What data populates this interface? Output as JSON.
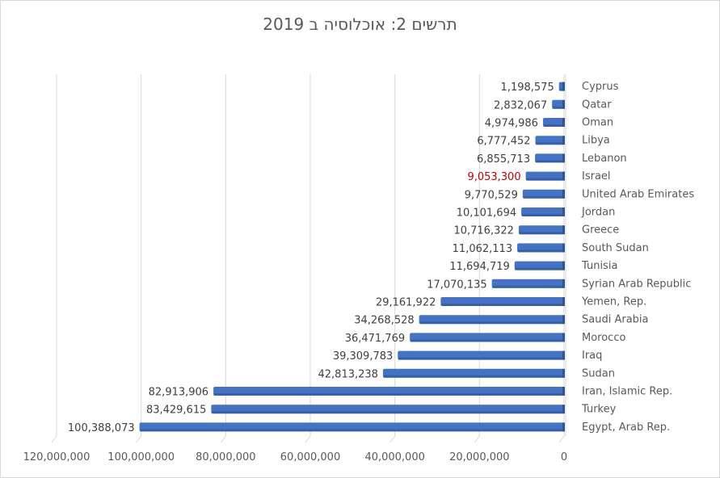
{
  "chart_data": {
    "type": "bar",
    "orientation": "horizontal",
    "title": "תרשים 2: אוכלוסיה ב 2019",
    "xlabel": "",
    "ylabel": "",
    "x_reversed": true,
    "xlim": [
      0,
      120000000
    ],
    "xticks": [
      0,
      20000000,
      40000000,
      60000000,
      80000000,
      100000000,
      120000000
    ],
    "xtick_labels": [
      "0",
      "20,000,000",
      "40,000,000",
      "60,000,000",
      "80,000,000",
      "100,000,000",
      "120,000,000"
    ],
    "grid": true,
    "legend": "none",
    "bar_color": "#4472c4",
    "highlight_label_color": "#c00000",
    "highlight_category": "Israel",
    "categories": [
      "Cyprus",
      "Qatar",
      "Oman",
      "Libya",
      "Lebanon",
      "Israel",
      "United Arab Emirates",
      "Jordan",
      "Greece",
      "South Sudan",
      "Tunisia",
      "Syrian Arab Republic",
      "Yemen, Rep.",
      "Saudi Arabia",
      "Morocco",
      "Iraq",
      "Sudan",
      "Iran, Islamic Rep.",
      "Turkey",
      "Egypt, Arab Rep."
    ],
    "values": [
      1198575,
      2832067,
      4974986,
      6777452,
      6855713,
      9053300,
      9770529,
      10101694,
      10716322,
      11062113,
      11694719,
      17070135,
      29161922,
      34268528,
      36471769,
      39309783,
      42813238,
      82913906,
      83429615,
      100388073
    ],
    "data_labels": [
      "1,198,575",
      "2,832,067",
      "4,974,986",
      "6,777,452",
      "6,855,713",
      "9,053,300",
      "9,770,529",
      "10,101,694",
      "10,716,322",
      "11,062,113",
      "11,694,719",
      "17,070,135",
      "29,161,922",
      "34,268,528",
      "36,471,769",
      "39,309,783",
      "42,813,238",
      "82,913,906",
      "83,429,615",
      "100,388,073"
    ]
  }
}
